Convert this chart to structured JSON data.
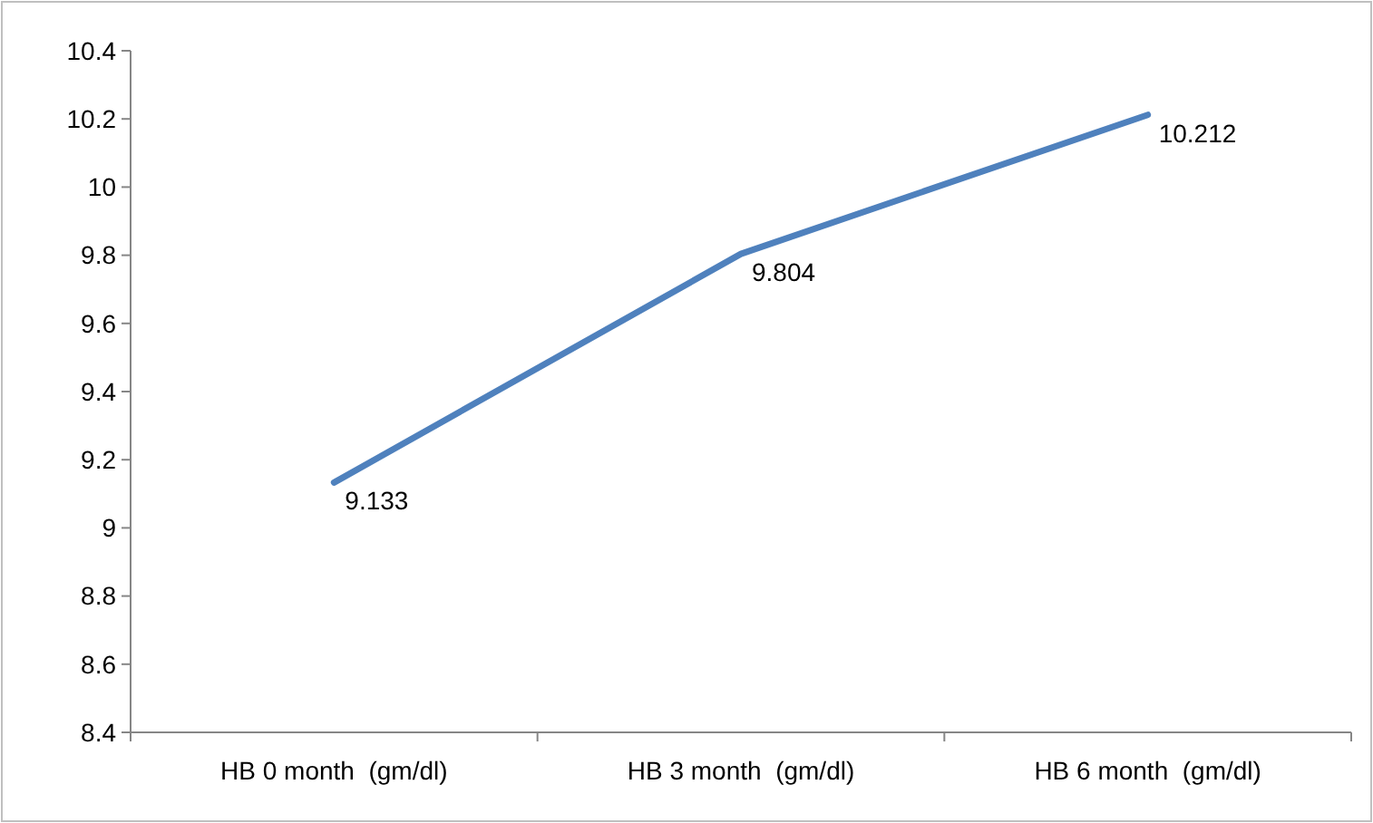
{
  "chart_data": {
    "type": "line",
    "categories": [
      "HB 0 month  (gm/dl)",
      "HB 3 month  (gm/dl)",
      "HB 6 month  (gm/dl)"
    ],
    "series": [
      {
        "color": "#4f81bd",
        "values": [
          9.133,
          9.804,
          10.212
        ]
      }
    ],
    "ylim": [
      8.4,
      10.4
    ],
    "yticks": [
      8.4,
      8.6,
      8.8,
      9,
      9.2,
      9.4,
      9.6,
      9.8,
      10,
      10.2,
      10.4
    ],
    "line_style": "solid",
    "data_labels": true
  }
}
